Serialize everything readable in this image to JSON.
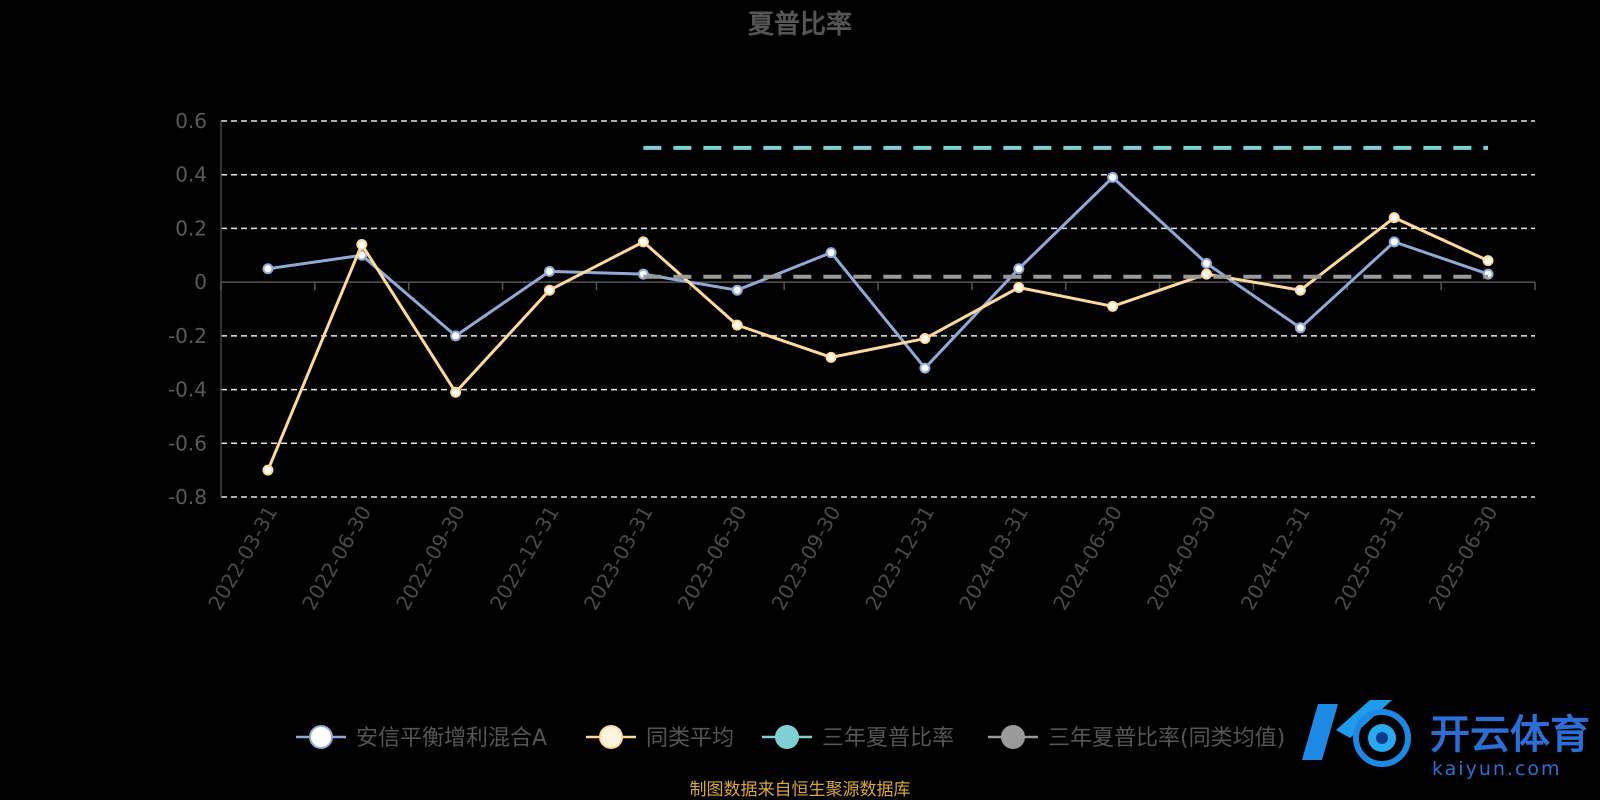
{
  "chart_data": {
    "type": "line",
    "title": "夏普比率",
    "categories": [
      "2022-03-31",
      "2022-06-30",
      "2022-09-30",
      "2022-12-31",
      "2023-03-31",
      "2023-06-30",
      "2023-09-30",
      "2023-12-31",
      "2024-03-31",
      "2024-06-30",
      "2024-09-30",
      "2024-12-31",
      "2025-03-31",
      "2025-06-30"
    ],
    "ylim": [
      -0.8,
      0.6
    ],
    "yticks": [
      0.6,
      0.4,
      0.2,
      0,
      -0.2,
      -0.4,
      -0.6,
      -0.8
    ],
    "grid": true,
    "legend_position": "bottom",
    "series": [
      {
        "name": "安信平衡增利混合A",
        "color": "#8fa9d8",
        "values": [
          0.05,
          0.1,
          -0.2,
          0.04,
          0.03,
          -0.03,
          0.11,
          -0.32,
          0.05,
          0.39,
          0.07,
          -0.17,
          0.15,
          0.03
        ]
      },
      {
        "name": "同类平均",
        "color": "#ffd89a",
        "values": [
          -0.7,
          0.14,
          -0.41,
          -0.03,
          0.15,
          -0.16,
          -0.28,
          -0.21,
          -0.02,
          -0.09,
          0.03,
          -0.03,
          0.24,
          0.08
        ]
      },
      {
        "name": "三年夏普比率",
        "color": "#7fd0d4",
        "dashed": true,
        "start_index": 4,
        "end_index": 13,
        "value": 0.5
      },
      {
        "name": "三年夏普比率(同类均值)",
        "color": "#9a9a9a",
        "dashed": true,
        "start_index": 4,
        "end_index": 13,
        "value": 0.02
      }
    ]
  },
  "source_text": "制图数据来自恒生聚源数据库",
  "watermark": {
    "brand_cn": "开云体育",
    "brand_en": "kaiyun.com"
  }
}
